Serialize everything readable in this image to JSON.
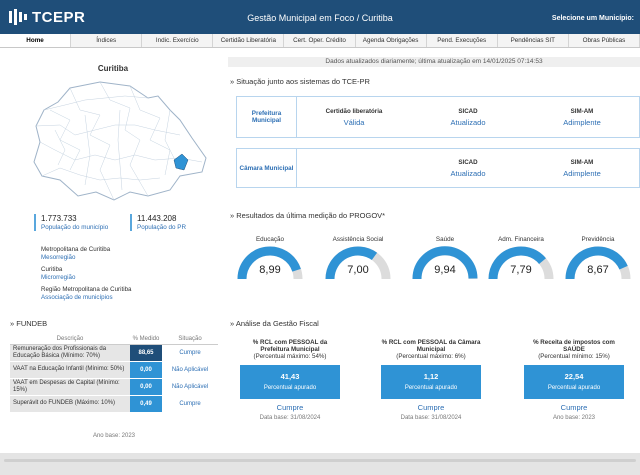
{
  "header": {
    "logo": "TCEPR",
    "title": "Gestão Municipal em Foco / Curitiba",
    "municipio_label": "Selecione um Município:"
  },
  "nav": [
    "Home",
    "Índices",
    "Indic. Exercício",
    "Certidão Liberatória",
    "Cert. Oper. Crédito",
    "Agenda Obrigações",
    "Pend. Execuções",
    "Pendências SIT",
    "Obras Públicas"
  ],
  "update_text": "Dados atualizados diariamente; última atualização em 14/01/2025 07:14:53",
  "map": {
    "title": "Curitiba"
  },
  "population": [
    {
      "value": "1.773.733",
      "label": "População do município"
    },
    {
      "value": "11.443.208",
      "label": "População do PR"
    }
  ],
  "regions": [
    {
      "name": "Metropolitana de Curitiba",
      "type": "Mesorregião"
    },
    {
      "name": "Curitiba",
      "type": "Microrregião"
    },
    {
      "name": "Região Metropolitana de Curitiba",
      "type": "Associação de municípios"
    }
  ],
  "systems": {
    "title": "» Situação junto aos sistemas do TCE-PR",
    "prefeitura": {
      "name": "Prefeitura Municipal",
      "cols": [
        {
          "head": "Certidão liberatória",
          "value": "Válida"
        },
        {
          "head": "SICAD",
          "value": "Atualizado"
        },
        {
          "head": "SIM-AM",
          "value": "Adimplente"
        }
      ]
    },
    "camara": {
      "name": "Câmara Municipal",
      "cols": [
        {
          "head": "",
          "value": ""
        },
        {
          "head": "SICAD",
          "value": "Atualizado"
        },
        {
          "head": "SIM-AM",
          "value": "Adimplente"
        }
      ]
    }
  },
  "progov": {
    "title": "» Resultados da última medição do PROGOV*",
    "gauges": [
      {
        "label": "Educação",
        "value": "8,99",
        "level": 0.899
      },
      {
        "label": "Assistência Social",
        "value": "7,00",
        "level": 0.7
      },
      {
        "label": "Saúde",
        "value": "9,94",
        "level": 0.994
      },
      {
        "label": "Adm. Financeira",
        "value": "7,79",
        "level": 0.779
      },
      {
        "label": "Previdência",
        "value": "8,67",
        "level": 0.867
      }
    ]
  },
  "fundeb": {
    "title": "» FUNDEB",
    "headers": [
      "Descrição",
      "% Medido",
      "Situação"
    ],
    "rows": [
      {
        "desc": "Remuneração dos Profissionais da Educação Básica (Mínimo: 70%)",
        "value": "88,65",
        "sit": "Cumpre"
      },
      {
        "desc": "VAAT na Educação Infantil (Mínimo: 50%)",
        "value": "0,00",
        "sit": "Não Aplicável"
      },
      {
        "desc": "VAAT em Despesas de Capital (Mínimo: 15%)",
        "value": "0,00",
        "sit": "Não Aplicável"
      },
      {
        "desc": "Superávit do FUNDEB (Máximo: 10%)",
        "value": "0,49",
        "sit": "Cumpre"
      }
    ],
    "base": "Ano base: 2023"
  },
  "fiscal": {
    "title": "» Análise da Gestão Fiscal",
    "items": [
      {
        "title": "% RCL com PESSOAL da Prefeitura Municipal",
        "limit": "(Percentual máximo: 54%)",
        "value": "41,43",
        "label": "Percentual apurado",
        "sit": "Cumpre",
        "date": "Data base: 31/08/2024"
      },
      {
        "title": "% RCL com PESSOAL da Câmara Municipal",
        "limit": "(Percentual máximo: 6%)",
        "value": "1,12",
        "label": "Percentual apurado",
        "sit": "Cumpre",
        "date": "Data base: 31/08/2024"
      },
      {
        "title": "% Receita de impostos com SAÚDE",
        "limit": "(Percentual mínimo: 15%)",
        "value": "22,54",
        "label": "Percentual apurado",
        "sit": "Cumpre",
        "date": "Ano base: 2023"
      }
    ]
  },
  "colors": {
    "header": "#1f4e79",
    "accent": "#2f93d5",
    "link": "#2d6fb4",
    "dark": "#1f4e79"
  }
}
